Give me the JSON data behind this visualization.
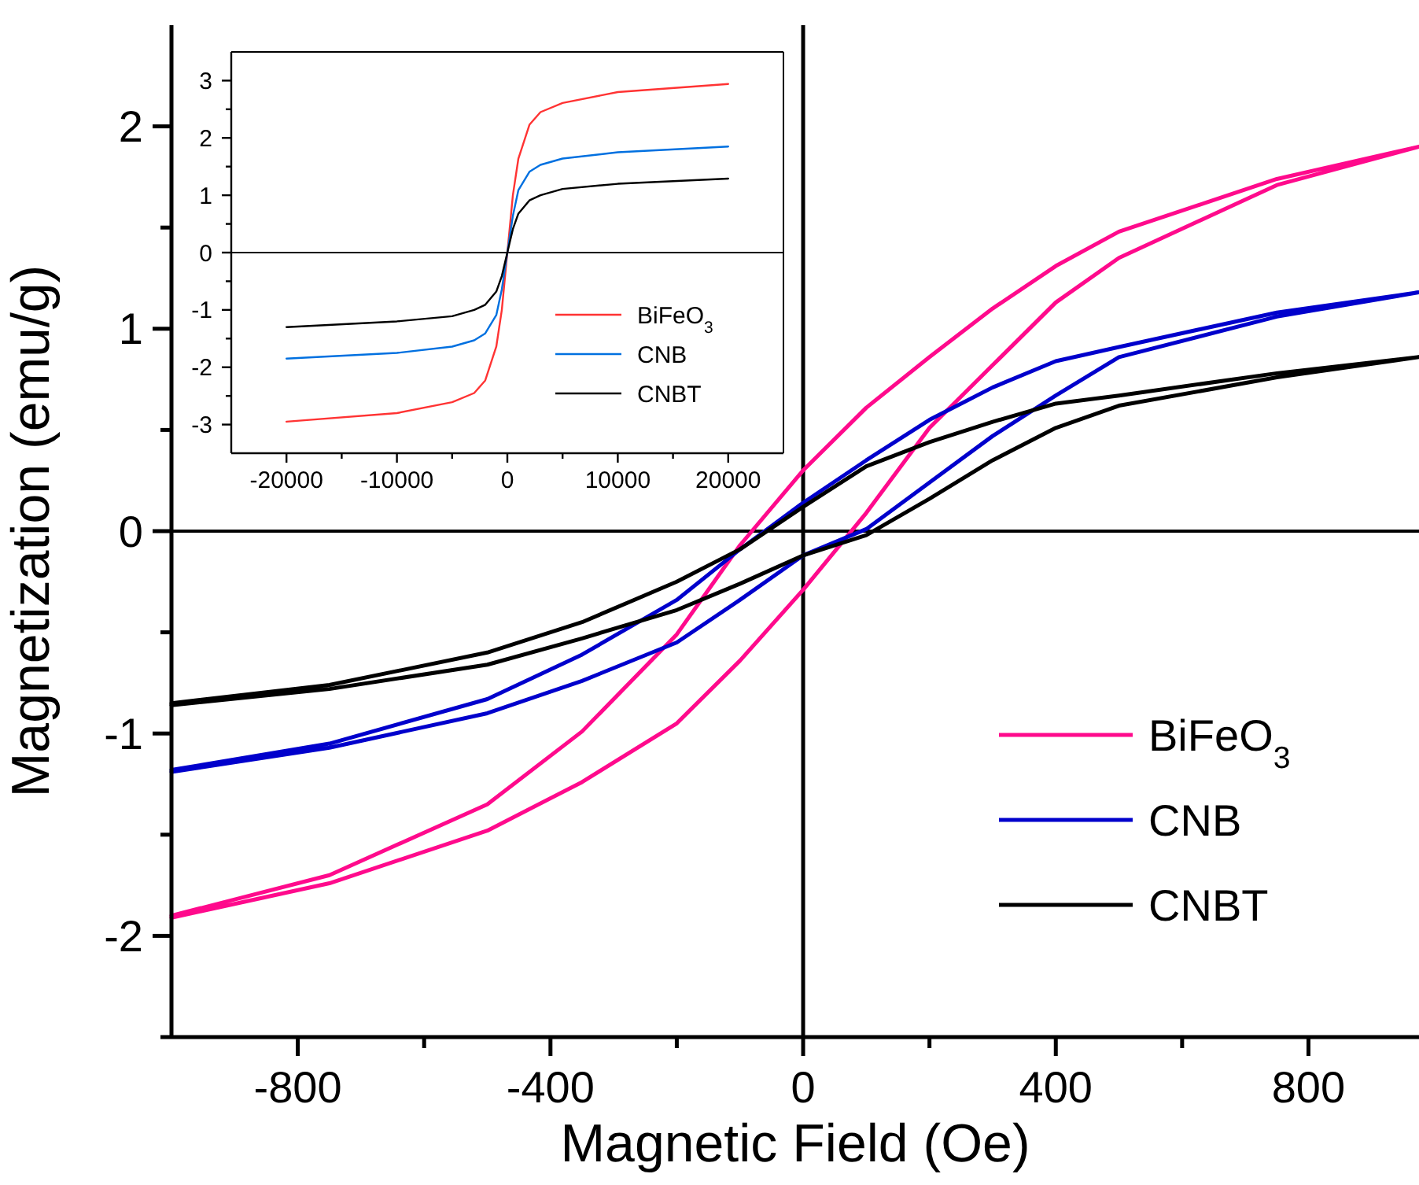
{
  "chart_data": [
    {
      "type": "line",
      "xlabel": "Magnetic Field (Oe)",
      "ylabel": "Magnetization (emu/g)",
      "xlim": [
        -1000,
        975
      ],
      "xticks": [
        -800,
        {
          "value": -600,
          "label": null
        },
        -400,
        {
          "value": -200,
          "label": null
        },
        0,
        {
          "value": 200,
          "label": null
        },
        400,
        {
          "value": 600,
          "label": null
        },
        800
      ],
      "ylim": [
        -2.5,
        2.5
      ],
      "yticks": [
        {
          "value": -2.5,
          "label": null
        },
        -2,
        {
          "value": -1.5,
          "label": null
        },
        -1,
        {
          "value": -0.5,
          "label": null
        },
        0,
        {
          "value": 0.5,
          "label": null
        },
        1,
        {
          "value": 1.5,
          "label": null
        },
        2
      ],
      "ref_lines": [
        {
          "axis": "x",
          "value": 0,
          "color": "#000000"
        },
        {
          "axis": "y",
          "value": 0,
          "color": "#000000"
        }
      ],
      "legend": "bottom right",
      "grid": false,
      "line_style": "solid",
      "marker": "none",
      "series": [
        {
          "name": "BiFeO$_{3}$",
          "color": "#ff0a8c",
          "x": [
            -1000,
            -750,
            -500,
            -350,
            -200,
            -100,
            0,
            100,
            200,
            300,
            400,
            500,
            750,
            975,
            750,
            500,
            400,
            300,
            200,
            100,
            0,
            -100,
            -200,
            -350,
            -500,
            -750,
            -1000
          ],
          "values": [
            -1.91,
            -1.74,
            -1.48,
            -1.24,
            -0.95,
            -0.64,
            -0.29,
            0.09,
            0.51,
            0.82,
            1.13,
            1.35,
            1.71,
            1.9,
            1.74,
            1.48,
            1.31,
            1.1,
            0.86,
            0.61,
            0.3,
            -0.07,
            -0.51,
            -0.99,
            -1.35,
            -1.7,
            -1.9
          ]
        },
        {
          "name": "CNB",
          "color": "#0000cc",
          "x": [
            -1000,
            -750,
            -500,
            -350,
            -200,
            -100,
            0,
            100,
            200,
            300,
            400,
            500,
            750,
            975,
            750,
            500,
            400,
            300,
            200,
            100,
            0,
            -100,
            -200,
            -350,
            -500,
            -750,
            -1000
          ],
          "values": [
            -1.19,
            -1.07,
            -0.9,
            -0.74,
            -0.55,
            -0.34,
            -0.12,
            0.01,
            0.24,
            0.47,
            0.67,
            0.86,
            1.06,
            1.18,
            1.08,
            0.91,
            0.84,
            0.71,
            0.55,
            0.35,
            0.14,
            -0.09,
            -0.34,
            -0.61,
            -0.83,
            -1.05,
            -1.18
          ]
        },
        {
          "name": "CNBT",
          "color": "#000000",
          "x": [
            -1000,
            -750,
            -500,
            -350,
            -200,
            -100,
            0,
            100,
            200,
            300,
            400,
            500,
            750,
            975,
            750,
            500,
            400,
            300,
            200,
            100,
            0,
            -100,
            -200,
            -350,
            -500,
            -750,
            -1000
          ],
          "values": [
            -0.86,
            -0.78,
            -0.66,
            -0.53,
            -0.39,
            -0.26,
            -0.12,
            -0.02,
            0.16,
            0.35,
            0.51,
            0.62,
            0.76,
            0.86,
            0.78,
            0.67,
            0.63,
            0.54,
            0.44,
            0.32,
            0.12,
            -0.09,
            -0.25,
            -0.45,
            -0.6,
            -0.76,
            -0.85
          ]
        }
      ]
    },
    {
      "type": "line",
      "xlim": [
        -25000,
        25000
      ],
      "xticks": [
        -20000,
        {
          "value": -15000,
          "label": null
        },
        -10000,
        {
          "value": -5000,
          "label": null
        },
        0,
        {
          "value": 5000,
          "label": null
        },
        10000,
        {
          "value": 15000,
          "label": null
        },
        20000
      ],
      "ylim": [
        -3.5,
        3.5
      ],
      "yticks": [
        -3,
        {
          "value": -2.5,
          "label": null
        },
        -2,
        {
          "value": -1.5,
          "label": null
        },
        -1,
        {
          "value": -0.5,
          "label": null
        },
        0,
        {
          "value": 0.5,
          "label": null
        },
        1,
        {
          "value": 1.5,
          "label": null
        },
        2,
        {
          "value": 2.5,
          "label": null
        },
        3
      ],
      "ref_lines": [
        {
          "axis": "y",
          "value": 0,
          "color": "#000000"
        }
      ],
      "legend": "bottom right",
      "grid": false,
      "line_style": "solid",
      "marker": "none",
      "series": [
        {
          "name": "BiFeO$_{3}$",
          "color": "#ff3333",
          "x": [
            -20000,
            -10000,
            -5000,
            -3000,
            -2000,
            -1000,
            -500,
            0,
            500,
            1000,
            2000,
            3000,
            5000,
            10000,
            20000
          ],
          "values": [
            -2.95,
            -2.8,
            -2.61,
            -2.45,
            -2.23,
            -1.64,
            -1.0,
            0,
            1.0,
            1.64,
            2.23,
            2.45,
            2.61,
            2.8,
            2.94
          ]
        },
        {
          "name": "CNB",
          "color": "#0070e0",
          "x": [
            -20000,
            -10000,
            -5000,
            -3000,
            -2000,
            -1000,
            -500,
            0,
            500,
            1000,
            2000,
            3000,
            5000,
            10000,
            20000
          ],
          "values": [
            -1.85,
            -1.75,
            -1.64,
            -1.53,
            -1.41,
            -1.09,
            -0.64,
            0,
            0.64,
            1.09,
            1.41,
            1.53,
            1.64,
            1.75,
            1.85
          ]
        },
        {
          "name": "CNBT",
          "color": "#000000",
          "x": [
            -20000,
            -10000,
            -5000,
            -3000,
            -2000,
            -1000,
            -500,
            0,
            500,
            1000,
            2000,
            3000,
            5000,
            10000,
            20000
          ],
          "values": [
            -1.3,
            -1.2,
            -1.11,
            -1.0,
            -0.91,
            -0.68,
            -0.41,
            0,
            0.41,
            0.68,
            0.91,
            1.0,
            1.11,
            1.2,
            1.29
          ]
        }
      ]
    }
  ]
}
